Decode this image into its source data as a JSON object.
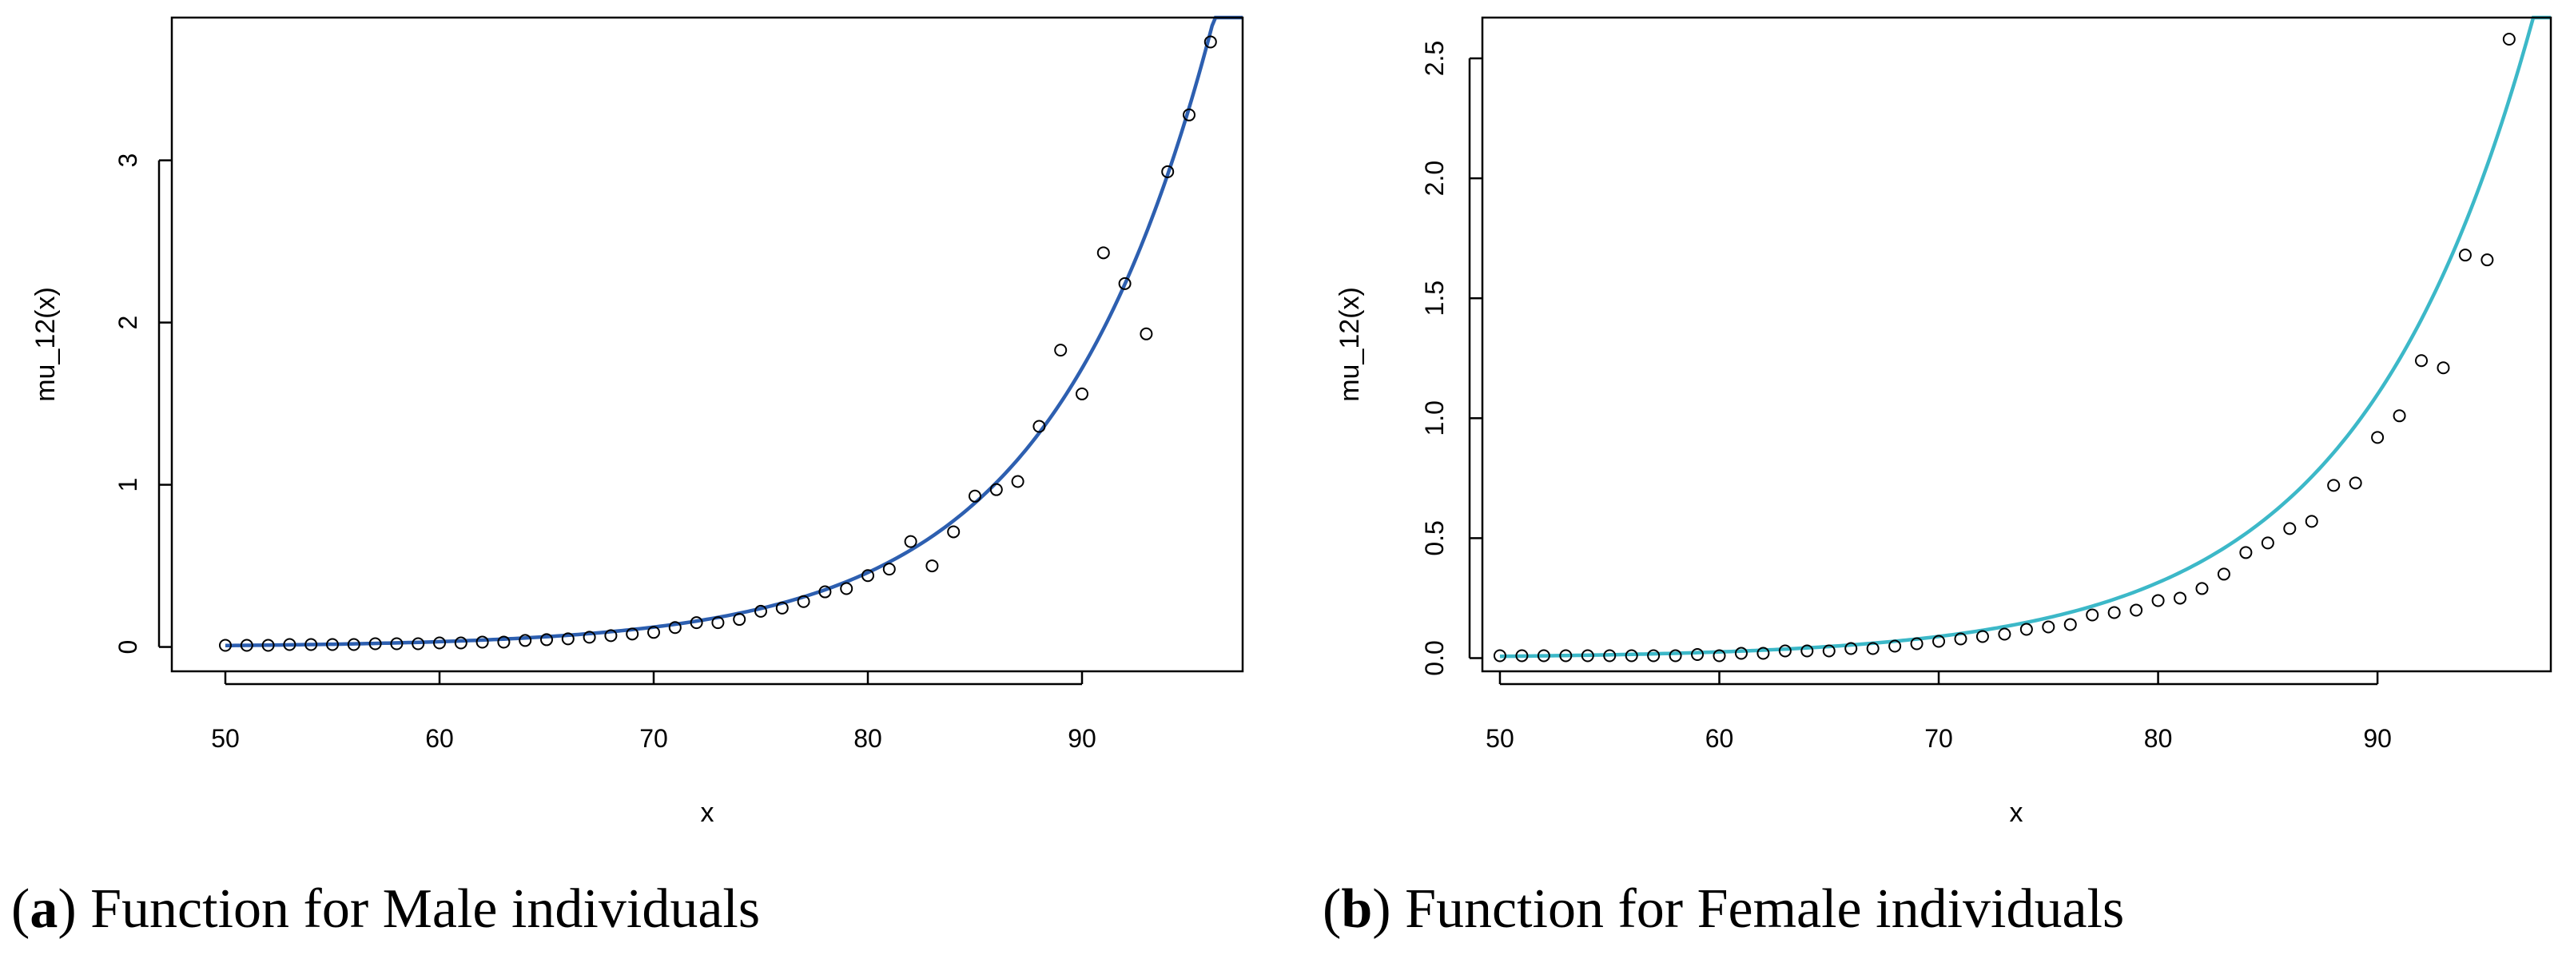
{
  "chart_data": [
    {
      "type": "scatter",
      "panel_id": "a",
      "caption_label": "a",
      "caption_text": "Function for Male individuals",
      "xlabel": "x",
      "ylabel": "mu_12(x)",
      "xlim": [
        47.5,
        97.5
      ],
      "ylim": [
        -0.15,
        3.88
      ],
      "xticks": [
        50,
        60,
        70,
        80,
        90
      ],
      "yticks": [
        0,
        1,
        2,
        3
      ],
      "ytick_labels": [
        "0",
        "1",
        "2",
        "3"
      ],
      "fit_color": "#2d5fb0",
      "fit": {
        "model": "exponential",
        "a": 1.19e-05,
        "b": 0.132
      },
      "x": [
        50,
        51,
        52,
        53,
        54,
        55,
        56,
        57,
        58,
        59,
        60,
        61,
        62,
        63,
        64,
        65,
        66,
        67,
        68,
        69,
        70,
        71,
        72,
        73,
        74,
        75,
        76,
        77,
        78,
        79,
        80,
        81,
        82,
        83,
        84,
        85,
        86,
        87,
        88,
        89,
        90,
        91,
        92,
        93,
        94,
        95,
        96
      ],
      "y": [
        0.01,
        0.01,
        0.01,
        0.015,
        0.015,
        0.015,
        0.015,
        0.02,
        0.02,
        0.02,
        0.025,
        0.025,
        0.03,
        0.03,
        0.04,
        0.045,
        0.05,
        0.06,
        0.07,
        0.08,
        0.09,
        0.12,
        0.15,
        0.15,
        0.17,
        0.22,
        0.24,
        0.28,
        0.34,
        0.36,
        0.44,
        0.48,
        0.65,
        0.5,
        0.71,
        0.93,
        0.97,
        1.02,
        1.36,
        1.83,
        1.56,
        2.43,
        2.24,
        1.93,
        2.93,
        3.28,
        3.73
      ]
    },
    {
      "type": "scatter",
      "panel_id": "b",
      "caption_label": "b",
      "caption_text": "Function for Female individuals",
      "xlabel": "x",
      "ylabel": "mu_12(x)",
      "xlim": [
        49.2,
        97.9
      ],
      "ylim": [
        -0.055,
        2.67
      ],
      "xticks": [
        50,
        60,
        70,
        80,
        90
      ],
      "yticks": [
        0,
        0.5,
        1,
        1.5,
        2,
        2.5
      ],
      "ytick_labels": [
        "0.0",
        "0.5",
        "1.0",
        "1.5",
        "2.0",
        "2.5"
      ],
      "fit_color": "#3cb8c8",
      "fit": {
        "model": "exponential",
        "a": 1.43e-05,
        "b": 0.125
      },
      "x": [
        50,
        51,
        52,
        53,
        54,
        55,
        56,
        57,
        58,
        59,
        60,
        61,
        62,
        63,
        64,
        65,
        66,
        67,
        68,
        69,
        70,
        71,
        72,
        73,
        74,
        75,
        76,
        77,
        78,
        79,
        80,
        81,
        82,
        83,
        84,
        85,
        86,
        87,
        88,
        89,
        90,
        91,
        92,
        93,
        94,
        95,
        96
      ],
      "y": [
        0.01,
        0.01,
        0.01,
        0.01,
        0.01,
        0.01,
        0.01,
        0.01,
        0.01,
        0.015,
        0.01,
        0.02,
        0.02,
        0.03,
        0.03,
        0.03,
        0.04,
        0.04,
        0.05,
        0.06,
        0.07,
        0.08,
        0.09,
        0.1,
        0.12,
        0.13,
        0.14,
        0.18,
        0.19,
        0.2,
        0.24,
        0.25,
        0.29,
        0.35,
        0.44,
        0.48,
        0.54,
        0.57,
        0.72,
        0.73,
        0.92,
        1.01,
        1.24,
        1.21,
        1.68,
        1.66,
        2.58
      ]
    }
  ]
}
